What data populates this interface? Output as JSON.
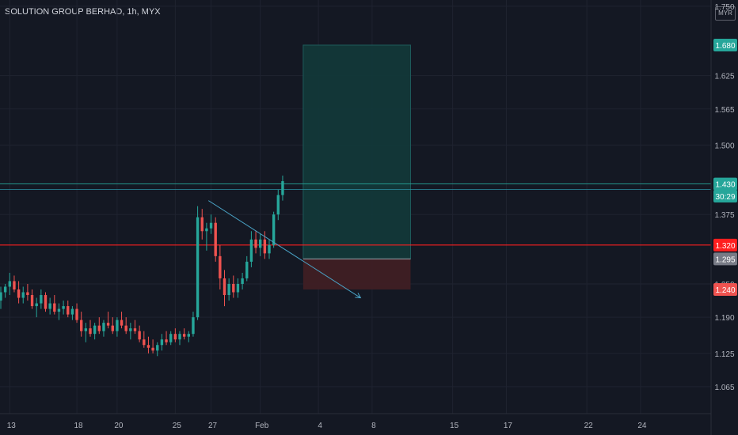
{
  "header": {
    "title": "SOLUTION GROUP BERHAD, 1h, MYX",
    "currency": "MYR"
  },
  "colors": {
    "background": "#141823",
    "grid": "#1f2330",
    "up": "#26a69a",
    "down": "#ef5350",
    "target_zone": "#123a3a",
    "stop_zone": "#3f1f24",
    "entry_line": "#ff1f1f",
    "trend_line": "#4aa3c6",
    "current_line": "#2a8fa3"
  },
  "chart_data": {
    "type": "candlestick",
    "title": "SOLUTION GROUP BERHAD, 1h, MYX",
    "y_axis": {
      "ticks": [
        "1.750",
        "1.625",
        "1.565",
        "1.500",
        "1.375",
        "1.250",
        "1.190",
        "1.125",
        "1.065"
      ],
      "tick_values": [
        1.75,
        1.625,
        1.565,
        1.5,
        1.375,
        1.25,
        1.19,
        1.125,
        1.065
      ],
      "ylim": [
        1.02,
        1.75
      ]
    },
    "x_axis": {
      "ticks": [
        "13",
        "18",
        "20",
        "25",
        "27",
        "Feb",
        "4",
        "8",
        "15",
        "17",
        "22",
        "24"
      ],
      "tick_index": [
        2,
        17,
        26,
        39,
        47,
        58,
        71,
        83,
        101,
        113,
        131,
        143
      ],
      "xlim": [
        0,
        163
      ]
    },
    "price_labels": [
      {
        "value": 1.68,
        "text": "1.680",
        "color": "#26a69a"
      },
      {
        "value": 1.43,
        "text": "1.430",
        "color": "#26a69a"
      },
      {
        "value": 1.408,
        "text": "30:29",
        "color": "#26a69a"
      },
      {
        "value": 1.32,
        "text": "1.320",
        "color": "#ff1f1f"
      },
      {
        "value": 1.295,
        "text": "1.295",
        "color": "#787b86"
      },
      {
        "value": 1.24,
        "text": "1.240",
        "color": "#ef5350"
      }
    ],
    "long_position": {
      "entry": 1.295,
      "target": 1.68,
      "stop": 1.24,
      "start_index": 66,
      "end_index": 90
    },
    "horizontal_lines": [
      {
        "value": 1.32,
        "color": "#ff1f1f"
      },
      {
        "value": 1.43,
        "color": "#26a69a"
      },
      {
        "value": 1.42,
        "color": "#2a8fa3"
      }
    ],
    "trend_line": {
      "start_index": 45,
      "start_value": 1.4,
      "end_index": 79,
      "end_value": 1.225
    },
    "candles": [
      [
        1.22,
        1.245,
        1.205,
        1.235
      ],
      [
        1.235,
        1.25,
        1.225,
        1.245
      ],
      [
        1.245,
        1.27,
        1.23,
        1.255
      ],
      [
        1.255,
        1.265,
        1.235,
        1.24
      ],
      [
        1.24,
        1.255,
        1.215,
        1.225
      ],
      [
        1.225,
        1.245,
        1.215,
        1.235
      ],
      [
        1.235,
        1.25,
        1.22,
        1.23
      ],
      [
        1.23,
        1.24,
        1.205,
        1.21
      ],
      [
        1.21,
        1.225,
        1.19,
        1.215
      ],
      [
        1.215,
        1.24,
        1.205,
        1.23
      ],
      [
        1.23,
        1.235,
        1.2,
        1.205
      ],
      [
        1.205,
        1.225,
        1.195,
        1.215
      ],
      [
        1.215,
        1.23,
        1.195,
        1.2
      ],
      [
        1.2,
        1.215,
        1.185,
        1.205
      ],
      [
        1.205,
        1.22,
        1.195,
        1.21
      ],
      [
        1.21,
        1.22,
        1.19,
        1.195
      ],
      [
        1.195,
        1.21,
        1.185,
        1.205
      ],
      [
        1.205,
        1.215,
        1.18,
        1.185
      ],
      [
        1.185,
        1.2,
        1.155,
        1.165
      ],
      [
        1.165,
        1.18,
        1.145,
        1.17
      ],
      [
        1.17,
        1.185,
        1.155,
        1.16
      ],
      [
        1.16,
        1.18,
        1.15,
        1.175
      ],
      [
        1.175,
        1.19,
        1.16,
        1.165
      ],
      [
        1.165,
        1.185,
        1.155,
        1.18
      ],
      [
        1.18,
        1.2,
        1.17,
        1.175
      ],
      [
        1.175,
        1.19,
        1.16,
        1.165
      ],
      [
        1.165,
        1.19,
        1.155,
        1.185
      ],
      [
        1.185,
        1.2,
        1.17,
        1.175
      ],
      [
        1.175,
        1.19,
        1.16,
        1.165
      ],
      [
        1.165,
        1.18,
        1.15,
        1.17
      ],
      [
        1.17,
        1.185,
        1.16,
        1.165
      ],
      [
        1.165,
        1.175,
        1.145,
        1.15
      ],
      [
        1.15,
        1.165,
        1.135,
        1.14
      ],
      [
        1.14,
        1.155,
        1.125,
        1.135
      ],
      [
        1.135,
        1.15,
        1.125,
        1.13
      ],
      [
        1.13,
        1.145,
        1.12,
        1.14
      ],
      [
        1.14,
        1.16,
        1.13,
        1.15
      ],
      [
        1.15,
        1.165,
        1.14,
        1.145
      ],
      [
        1.145,
        1.165,
        1.14,
        1.16
      ],
      [
        1.16,
        1.17,
        1.145,
        1.15
      ],
      [
        1.15,
        1.165,
        1.14,
        1.16
      ],
      [
        1.16,
        1.17,
        1.15,
        1.155
      ],
      [
        1.155,
        1.165,
        1.145,
        1.16
      ],
      [
        1.16,
        1.2,
        1.155,
        1.19
      ],
      [
        1.19,
        1.39,
        1.185,
        1.37
      ],
      [
        1.37,
        1.385,
        1.33,
        1.345
      ],
      [
        1.345,
        1.36,
        1.31,
        1.35
      ],
      [
        1.35,
        1.375,
        1.34,
        1.36
      ],
      [
        1.36,
        1.37,
        1.29,
        1.3
      ],
      [
        1.3,
        1.32,
        1.24,
        1.26
      ],
      [
        1.26,
        1.275,
        1.21,
        1.23
      ],
      [
        1.23,
        1.26,
        1.22,
        1.25
      ],
      [
        1.25,
        1.265,
        1.225,
        1.235
      ],
      [
        1.235,
        1.26,
        1.225,
        1.25
      ],
      [
        1.25,
        1.27,
        1.24,
        1.26
      ],
      [
        1.26,
        1.3,
        1.255,
        1.29
      ],
      [
        1.29,
        1.345,
        1.28,
        1.33
      ],
      [
        1.33,
        1.345,
        1.305,
        1.315
      ],
      [
        1.315,
        1.34,
        1.3,
        1.33
      ],
      [
        1.33,
        1.345,
        1.295,
        1.305
      ],
      [
        1.305,
        1.33,
        1.295,
        1.32
      ],
      [
        1.32,
        1.38,
        1.315,
        1.375
      ],
      [
        1.375,
        1.42,
        1.365,
        1.41
      ],
      [
        1.41,
        1.445,
        1.4,
        1.435
      ]
    ]
  }
}
